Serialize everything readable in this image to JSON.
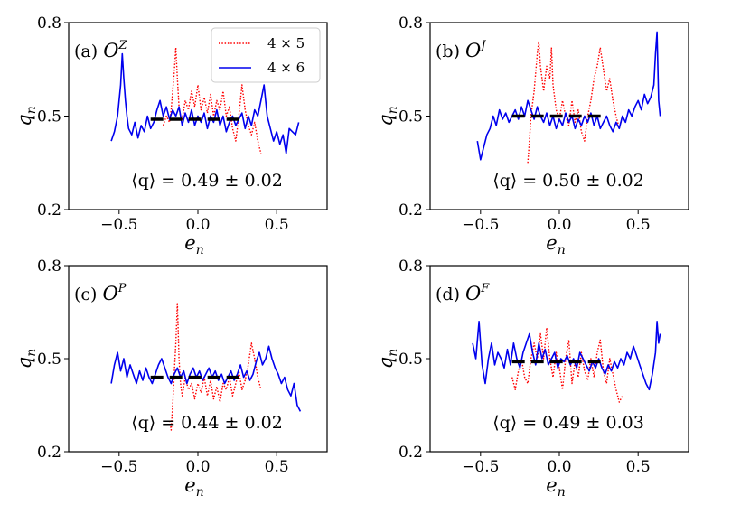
{
  "chart_data": [
    {
      "type": "line",
      "panel": "a",
      "label_prefix": "(a)",
      "label_op": "O",
      "label_sup": "Z",
      "xlabel": "e_n",
      "ylabel": "q_n",
      "xlim": [
        -0.82,
        0.82
      ],
      "ylim": [
        0.2,
        0.8
      ],
      "xticks": [
        -0.5,
        0.0,
        0.5
      ],
      "xtick_labels": [
        "−0.5",
        "0.0",
        "0.5"
      ],
      "yticks": [
        0.2,
        0.5,
        0.8
      ],
      "ytick_labels": [
        "0.2",
        "0.5",
        "0.8"
      ],
      "mean": 0.49,
      "mean_range": [
        -0.3,
        0.3
      ],
      "annotation": "⟨q⟩ = 0.49 ± 0.02",
      "series": [
        {
          "name": "4 × 5",
          "style": "dotted",
          "color": "#ff0000",
          "x": [
            -0.22,
            -0.2,
            -0.18,
            -0.17,
            -0.16,
            -0.15,
            -0.14,
            -0.13,
            -0.12,
            -0.11,
            -0.1,
            -0.08,
            -0.06,
            -0.04,
            -0.02,
            0.0,
            0.02,
            0.04,
            0.06,
            0.08,
            0.1,
            0.12,
            0.14,
            0.16,
            0.18,
            0.2,
            0.22,
            0.24,
            0.26,
            0.28,
            0.3,
            0.32,
            0.34,
            0.36,
            0.38,
            0.4
          ],
          "y": [
            0.47,
            0.5,
            0.48,
            0.52,
            0.58,
            0.64,
            0.72,
            0.62,
            0.53,
            0.5,
            0.49,
            0.55,
            0.52,
            0.58,
            0.53,
            0.6,
            0.52,
            0.56,
            0.51,
            0.57,
            0.5,
            0.55,
            0.52,
            0.58,
            0.5,
            0.53,
            0.46,
            0.42,
            0.5,
            0.6,
            0.52,
            0.47,
            0.44,
            0.48,
            0.42,
            0.38
          ]
        },
        {
          "name": "4 × 6",
          "style": "solid",
          "color": "#0000ee",
          "x": [
            -0.55,
            -0.53,
            -0.51,
            -0.49,
            -0.48,
            -0.47,
            -0.46,
            -0.45,
            -0.44,
            -0.42,
            -0.4,
            -0.38,
            -0.36,
            -0.34,
            -0.32,
            -0.3,
            -0.28,
            -0.26,
            -0.24,
            -0.22,
            -0.2,
            -0.18,
            -0.16,
            -0.14,
            -0.12,
            -0.1,
            -0.08,
            -0.06,
            -0.04,
            -0.02,
            0.0,
            0.02,
            0.04,
            0.06,
            0.08,
            0.1,
            0.12,
            0.14,
            0.16,
            0.18,
            0.2,
            0.22,
            0.24,
            0.26,
            0.28,
            0.3,
            0.32,
            0.34,
            0.36,
            0.38,
            0.4,
            0.42,
            0.44,
            0.46,
            0.48,
            0.5,
            0.52,
            0.54,
            0.56,
            0.58,
            0.6,
            0.62,
            0.64
          ],
          "y": [
            0.42,
            0.45,
            0.5,
            0.6,
            0.7,
            0.62,
            0.55,
            0.5,
            0.46,
            0.44,
            0.48,
            0.43,
            0.47,
            0.45,
            0.5,
            0.46,
            0.48,
            0.52,
            0.55,
            0.5,
            0.53,
            0.49,
            0.52,
            0.5,
            0.53,
            0.47,
            0.51,
            0.48,
            0.52,
            0.47,
            0.5,
            0.48,
            0.51,
            0.46,
            0.5,
            0.48,
            0.52,
            0.47,
            0.5,
            0.45,
            0.48,
            0.5,
            0.47,
            0.49,
            0.51,
            0.46,
            0.5,
            0.47,
            0.52,
            0.5,
            0.55,
            0.6,
            0.5,
            0.46,
            0.42,
            0.45,
            0.41,
            0.44,
            0.38,
            0.46,
            0.45,
            0.44,
            0.48
          ]
        }
      ],
      "legend": {
        "location": "top-right",
        "entries": [
          "4 × 5",
          "4 × 6"
        ]
      }
    },
    {
      "type": "line",
      "panel": "b",
      "label_prefix": "(b)",
      "label_op": "O",
      "label_sup": "J",
      "xlabel": "e_n",
      "ylabel": "q_n",
      "xlim": [
        -0.82,
        0.82
      ],
      "ylim": [
        0.2,
        0.8
      ],
      "xticks": [
        -0.5,
        0.0,
        0.5
      ],
      "xtick_labels": [
        "−0.5",
        "0.0",
        "0.5"
      ],
      "yticks": [
        0.2,
        0.5,
        0.8
      ],
      "ytick_labels": [
        "0.2",
        "0.5",
        "0.8"
      ],
      "mean": 0.5,
      "mean_range": [
        -0.3,
        0.3
      ],
      "annotation": "⟨q⟩ = 0.50 ± 0.02",
      "series": [
        {
          "name": "4 × 5",
          "style": "dotted",
          "color": "#ff0000",
          "x": [
            -0.2,
            -0.19,
            -0.18,
            -0.16,
            -0.14,
            -0.13,
            -0.12,
            -0.1,
            -0.08,
            -0.06,
            -0.05,
            -0.04,
            -0.02,
            0.0,
            0.02,
            0.04,
            0.06,
            0.08,
            0.1,
            0.12,
            0.14,
            0.16,
            0.18,
            0.2,
            0.22,
            0.24,
            0.26,
            0.28,
            0.3,
            0.32,
            0.34,
            0.36,
            0.38,
            0.4
          ],
          "y": [
            0.35,
            0.42,
            0.5,
            0.58,
            0.7,
            0.74,
            0.66,
            0.58,
            0.66,
            0.62,
            0.72,
            0.6,
            0.52,
            0.49,
            0.55,
            0.5,
            0.47,
            0.55,
            0.48,
            0.52,
            0.45,
            0.42,
            0.5,
            0.55,
            0.62,
            0.66,
            0.72,
            0.65,
            0.58,
            0.62,
            0.55,
            0.5,
            0.46,
            0.5
          ]
        },
        {
          "name": "4 × 6",
          "style": "solid",
          "color": "#0000ee",
          "x": [
            -0.52,
            -0.5,
            -0.48,
            -0.46,
            -0.44,
            -0.42,
            -0.4,
            -0.38,
            -0.36,
            -0.34,
            -0.32,
            -0.3,
            -0.28,
            -0.26,
            -0.24,
            -0.22,
            -0.2,
            -0.18,
            -0.16,
            -0.14,
            -0.12,
            -0.1,
            -0.08,
            -0.06,
            -0.04,
            -0.02,
            0.0,
            0.02,
            0.04,
            0.06,
            0.08,
            0.1,
            0.12,
            0.14,
            0.16,
            0.18,
            0.2,
            0.22,
            0.24,
            0.26,
            0.28,
            0.3,
            0.32,
            0.34,
            0.36,
            0.38,
            0.4,
            0.42,
            0.44,
            0.46,
            0.48,
            0.5,
            0.52,
            0.54,
            0.56,
            0.58,
            0.6,
            0.61,
            0.62,
            0.63,
            0.64
          ],
          "y": [
            0.42,
            0.36,
            0.4,
            0.44,
            0.46,
            0.5,
            0.47,
            0.52,
            0.49,
            0.51,
            0.48,
            0.5,
            0.52,
            0.49,
            0.53,
            0.5,
            0.55,
            0.52,
            0.49,
            0.53,
            0.5,
            0.48,
            0.51,
            0.47,
            0.5,
            0.46,
            0.49,
            0.47,
            0.51,
            0.48,
            0.5,
            0.46,
            0.49,
            0.47,
            0.5,
            0.48,
            0.51,
            0.47,
            0.5,
            0.46,
            0.48,
            0.5,
            0.47,
            0.45,
            0.48,
            0.46,
            0.5,
            0.48,
            0.52,
            0.5,
            0.53,
            0.55,
            0.52,
            0.57,
            0.54,
            0.56,
            0.6,
            0.7,
            0.77,
            0.55,
            0.5
          ]
        }
      ]
    },
    {
      "type": "line",
      "panel": "c",
      "label_prefix": "(c)",
      "label_op": "O",
      "label_sup": "P",
      "xlabel": "e_n",
      "ylabel": "q_n",
      "xlim": [
        -0.82,
        0.82
      ],
      "ylim": [
        0.2,
        0.8
      ],
      "xticks": [
        -0.5,
        0.0,
        0.5
      ],
      "xtick_labels": [
        "−0.5",
        "0.0",
        "0.5"
      ],
      "yticks": [
        0.2,
        0.5,
        0.8
      ],
      "ytick_labels": [
        "0.2",
        "0.5",
        "0.8"
      ],
      "mean": 0.44,
      "mean_range": [
        -0.3,
        0.3
      ],
      "annotation": "⟨q⟩ = 0.44 ± 0.02",
      "series": [
        {
          "name": "4 × 5",
          "style": "dotted",
          "color": "#ff0000",
          "x": [
            -0.18,
            -0.17,
            -0.16,
            -0.15,
            -0.14,
            -0.13,
            -0.12,
            -0.11,
            -0.1,
            -0.08,
            -0.06,
            -0.04,
            -0.02,
            0.0,
            0.02,
            0.04,
            0.06,
            0.08,
            0.1,
            0.12,
            0.14,
            0.16,
            0.18,
            0.2,
            0.22,
            0.24,
            0.26,
            0.28,
            0.3,
            0.32,
            0.34,
            0.36,
            0.38,
            0.4
          ],
          "y": [
            0.3,
            0.27,
            0.35,
            0.45,
            0.55,
            0.68,
            0.5,
            0.42,
            0.38,
            0.44,
            0.4,
            0.42,
            0.37,
            0.42,
            0.39,
            0.44,
            0.38,
            0.43,
            0.37,
            0.41,
            0.36,
            0.42,
            0.4,
            0.44,
            0.38,
            0.42,
            0.46,
            0.4,
            0.43,
            0.48,
            0.55,
            0.5,
            0.44,
            0.4
          ]
        },
        {
          "name": "4 × 6",
          "style": "solid",
          "color": "#0000ee",
          "x": [
            -0.55,
            -0.53,
            -0.51,
            -0.49,
            -0.47,
            -0.45,
            -0.43,
            -0.41,
            -0.39,
            -0.37,
            -0.35,
            -0.33,
            -0.31,
            -0.29,
            -0.27,
            -0.25,
            -0.23,
            -0.21,
            -0.19,
            -0.17,
            -0.15,
            -0.13,
            -0.11,
            -0.09,
            -0.07,
            -0.05,
            -0.03,
            -0.01,
            0.01,
            0.03,
            0.05,
            0.07,
            0.09,
            0.11,
            0.13,
            0.15,
            0.17,
            0.19,
            0.21,
            0.23,
            0.25,
            0.27,
            0.29,
            0.31,
            0.33,
            0.35,
            0.37,
            0.39,
            0.41,
            0.43,
            0.45,
            0.47,
            0.49,
            0.51,
            0.53,
            0.55,
            0.57,
            0.59,
            0.61,
            0.63,
            0.65
          ],
          "y": [
            0.42,
            0.48,
            0.52,
            0.46,
            0.5,
            0.44,
            0.48,
            0.45,
            0.42,
            0.46,
            0.43,
            0.47,
            0.44,
            0.42,
            0.45,
            0.48,
            0.5,
            0.47,
            0.44,
            0.42,
            0.45,
            0.47,
            0.44,
            0.46,
            0.42,
            0.45,
            0.47,
            0.44,
            0.46,
            0.43,
            0.45,
            0.47,
            0.44,
            0.46,
            0.43,
            0.45,
            0.42,
            0.44,
            0.46,
            0.43,
            0.45,
            0.48,
            0.44,
            0.46,
            0.43,
            0.45,
            0.49,
            0.52,
            0.48,
            0.5,
            0.54,
            0.5,
            0.47,
            0.45,
            0.42,
            0.44,
            0.4,
            0.38,
            0.42,
            0.35,
            0.33
          ]
        }
      ]
    },
    {
      "type": "line",
      "panel": "d",
      "label_prefix": "(d)",
      "label_op": "O",
      "label_sup": "F",
      "xlabel": "e_n",
      "ylabel": "q_n",
      "xlim": [
        -0.82,
        0.82
      ],
      "ylim": [
        0.2,
        0.8
      ],
      "xticks": [
        -0.5,
        0.0,
        0.5
      ],
      "xtick_labels": [
        "−0.5",
        "0.0",
        "0.5"
      ],
      "yticks": [
        0.2,
        0.5,
        0.8
      ],
      "ytick_labels": [
        "0.2",
        "0.5",
        "0.8"
      ],
      "mean": 0.49,
      "mean_range": [
        -0.3,
        0.3
      ],
      "annotation": "⟨q⟩ = 0.49 ± 0.03",
      "series": [
        {
          "name": "4 × 5",
          "style": "dotted",
          "color": "#ff0000",
          "x": [
            -0.3,
            -0.28,
            -0.26,
            -0.24,
            -0.22,
            -0.2,
            -0.18,
            -0.16,
            -0.14,
            -0.12,
            -0.1,
            -0.08,
            -0.06,
            -0.04,
            -0.02,
            0.0,
            0.02,
            0.04,
            0.06,
            0.08,
            0.1,
            0.12,
            0.14,
            0.16,
            0.18,
            0.2,
            0.22,
            0.24,
            0.26,
            0.28,
            0.3,
            0.32,
            0.34,
            0.36,
            0.38,
            0.4
          ],
          "y": [
            0.44,
            0.4,
            0.46,
            0.5,
            0.44,
            0.42,
            0.5,
            0.55,
            0.5,
            0.58,
            0.5,
            0.6,
            0.5,
            0.44,
            0.52,
            0.47,
            0.4,
            0.5,
            0.56,
            0.42,
            0.49,
            0.44,
            0.52,
            0.46,
            0.43,
            0.5,
            0.44,
            0.52,
            0.56,
            0.46,
            0.42,
            0.5,
            0.45,
            0.4,
            0.36,
            0.38
          ]
        },
        {
          "name": "4 × 6",
          "style": "solid",
          "color": "#0000ee",
          "x": [
            -0.55,
            -0.53,
            -0.51,
            -0.49,
            -0.47,
            -0.45,
            -0.43,
            -0.41,
            -0.39,
            -0.37,
            -0.35,
            -0.33,
            -0.31,
            -0.29,
            -0.27,
            -0.25,
            -0.23,
            -0.21,
            -0.19,
            -0.17,
            -0.15,
            -0.13,
            -0.11,
            -0.09,
            -0.07,
            -0.05,
            -0.03,
            -0.01,
            0.01,
            0.03,
            0.05,
            0.07,
            0.09,
            0.11,
            0.13,
            0.15,
            0.17,
            0.19,
            0.21,
            0.23,
            0.25,
            0.27,
            0.29,
            0.31,
            0.33,
            0.35,
            0.37,
            0.39,
            0.41,
            0.43,
            0.45,
            0.47,
            0.49,
            0.51,
            0.53,
            0.55,
            0.57,
            0.59,
            0.61,
            0.62,
            0.63,
            0.64
          ],
          "y": [
            0.55,
            0.5,
            0.62,
            0.48,
            0.42,
            0.5,
            0.55,
            0.48,
            0.52,
            0.5,
            0.47,
            0.53,
            0.48,
            0.55,
            0.5,
            0.47,
            0.52,
            0.55,
            0.58,
            0.52,
            0.48,
            0.55,
            0.5,
            0.53,
            0.48,
            0.5,
            0.52,
            0.47,
            0.5,
            0.49,
            0.51,
            0.48,
            0.5,
            0.47,
            0.52,
            0.5,
            0.48,
            0.46,
            0.49,
            0.47,
            0.5,
            0.47,
            0.45,
            0.48,
            0.46,
            0.49,
            0.47,
            0.5,
            0.48,
            0.52,
            0.5,
            0.54,
            0.51,
            0.48,
            0.45,
            0.42,
            0.4,
            0.45,
            0.52,
            0.62,
            0.55,
            0.58
          ]
        }
      ]
    }
  ]
}
